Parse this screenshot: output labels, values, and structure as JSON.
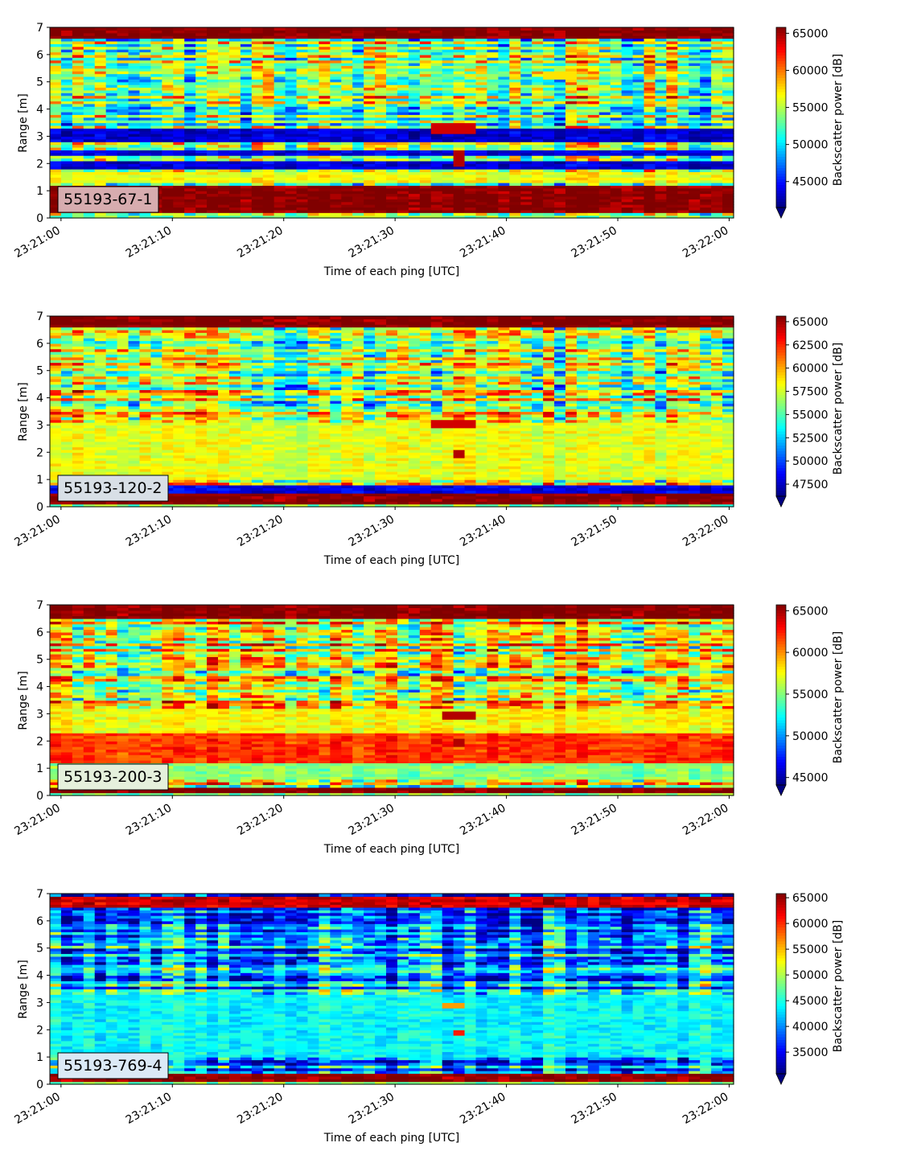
{
  "chart_data": [
    {
      "type": "heatmap",
      "label": "55193-67-1",
      "xlabel": "Time of each ping [UTC]",
      "ylabel": "Range [m]",
      "x_ticks": [
        "23:21:00",
        "23:21:10",
        "23:21:20",
        "23:21:30",
        "23:21:40",
        "23:21:50",
        "23:22:00"
      ],
      "xlim_seconds": [
        -1,
        60.4
      ],
      "ylim": [
        0,
        7
      ],
      "y_ticks": [
        0,
        1,
        2,
        3,
        4,
        5,
        6,
        7
      ],
      "colorbar": {
        "label": "Backscatter power [dB]",
        "colormap": "jet",
        "range": [
          41500,
          65800
        ],
        "ticks": [
          45000,
          50000,
          55000,
          60000,
          65000
        ],
        "extend": "min"
      },
      "features": [
        {
          "range": [
            0.2,
            1.15
          ],
          "level": 1.0
        },
        {
          "range": [
            6.6,
            7.0
          ],
          "level": 1.0
        },
        {
          "range": [
            1.35,
            1.7
          ],
          "level": 0.62
        },
        {
          "range": [
            1.85,
            2.05
          ],
          "level": 0.08
        },
        {
          "range": [
            2.85,
            3.3
          ],
          "level": 0.08
        },
        {
          "range": [
            2.3,
            2.5
          ],
          "level": 0.1
        }
      ],
      "hotspots": [
        {
          "time": [
            33.5,
            37.5
          ],
          "range": [
            3.1,
            3.5
          ],
          "level": 0.92
        },
        {
          "time": [
            35,
            36
          ],
          "range": [
            1.9,
            2.5
          ],
          "level": 0.95
        },
        {
          "time": [
            43,
            46
          ],
          "range": [
            5.1,
            5.4
          ],
          "level": 0.65
        }
      ]
    },
    {
      "type": "heatmap",
      "label": "55193-120-2",
      "xlabel": "Time of each ping [UTC]",
      "ylabel": "Range [m]",
      "x_ticks": [
        "23:21:00",
        "23:21:10",
        "23:21:20",
        "23:21:30",
        "23:21:40",
        "23:21:50",
        "23:22:00"
      ],
      "xlim_seconds": [
        -1,
        60.4
      ],
      "ylim": [
        0,
        7
      ],
      "y_ticks": [
        0,
        1,
        2,
        3,
        4,
        5,
        6,
        7
      ],
      "colorbar": {
        "label": "Backscatter power [dB]",
        "colormap": "jet",
        "range": [
          46200,
          65600
        ],
        "ticks": [
          47500,
          50000,
          52500,
          55000,
          57500,
          60000,
          62500,
          65000
        ],
        "extend": "min"
      },
      "features": [
        {
          "range": [
            0.1,
            0.5
          ],
          "level": 1.0
        },
        {
          "range": [
            6.6,
            7.0
          ],
          "level": 1.0
        },
        {
          "range": [
            1.0,
            3.1
          ],
          "level": 0.6
        },
        {
          "range": [
            0.55,
            0.75
          ],
          "level": 0.1
        }
      ],
      "hotspots": [
        {
          "time": [
            33.5,
            37.5
          ],
          "range": [
            2.95,
            3.15
          ],
          "level": 0.92
        },
        {
          "time": [
            35,
            36
          ],
          "range": [
            1.8,
            2.1
          ],
          "level": 0.95
        }
      ]
    },
    {
      "type": "heatmap",
      "label": "55193-200-3",
      "xlabel": "Time of each ping [UTC]",
      "ylabel": "Range [m]",
      "x_ticks": [
        "23:21:00",
        "23:21:10",
        "23:21:20",
        "23:21:30",
        "23:21:40",
        "23:21:50",
        "23:22:00"
      ],
      "xlim_seconds": [
        -1,
        60.4
      ],
      "ylim": [
        0,
        7
      ],
      "y_ticks": [
        0,
        1,
        2,
        3,
        4,
        5,
        6,
        7
      ],
      "colorbar": {
        "label": "Backscatter power [dB]",
        "colormap": "jet",
        "range": [
          44100,
          65700
        ],
        "ticks": [
          45000,
          50000,
          55000,
          60000,
          65000
        ],
        "extend": "min"
      },
      "features": [
        {
          "range": [
            0.1,
            0.3
          ],
          "level": 1.0
        },
        {
          "range": [
            6.5,
            7.0
          ],
          "level": 1.0
        },
        {
          "range": [
            1.2,
            2.3
          ],
          "level": 0.82
        },
        {
          "range": [
            2.3,
            3.2
          ],
          "level": 0.62
        },
        {
          "range": [
            0.6,
            1.2
          ],
          "level": 0.5
        }
      ],
      "hotspots": [
        {
          "time": [
            34.5,
            37
          ],
          "range": [
            2.85,
            3.05
          ],
          "level": 0.95
        },
        {
          "time": [
            35,
            36
          ],
          "range": [
            1.8,
            2.1
          ],
          "level": 0.95
        }
      ]
    },
    {
      "type": "heatmap",
      "label": "55193-769-4",
      "xlabel": "Time of each ping [UTC]",
      "ylabel": "Range [m]",
      "x_ticks": [
        "23:21:00",
        "23:21:10",
        "23:21:20",
        "23:21:30",
        "23:21:40",
        "23:21:50",
        "23:22:00"
      ],
      "xlim_seconds": [
        -1,
        60.4
      ],
      "ylim": [
        0,
        7
      ],
      "y_ticks": [
        0,
        1,
        2,
        3,
        4,
        5,
        6,
        7
      ],
      "colorbar": {
        "label": "Backscatter power [dB]",
        "colormap": "jet",
        "range": [
          30800,
          65800
        ],
        "ticks": [
          35000,
          40000,
          45000,
          50000,
          55000,
          60000,
          65000
        ],
        "extend": "min"
      },
      "features": [
        {
          "range": [
            0.15,
            0.35
          ],
          "level": 0.98
        },
        {
          "range": [
            6.5,
            6.85
          ],
          "level": 0.92
        },
        {
          "range": [
            1.0,
            3.3
          ],
          "level": 0.38
        }
      ],
      "hotspots": [
        {
          "time": [
            34,
            36.5
          ],
          "range": [
            2.85,
            3.0
          ],
          "level": 0.72
        },
        {
          "time": [
            35,
            36
          ],
          "range": [
            1.85,
            2.0
          ],
          "level": 0.85
        }
      ]
    }
  ]
}
